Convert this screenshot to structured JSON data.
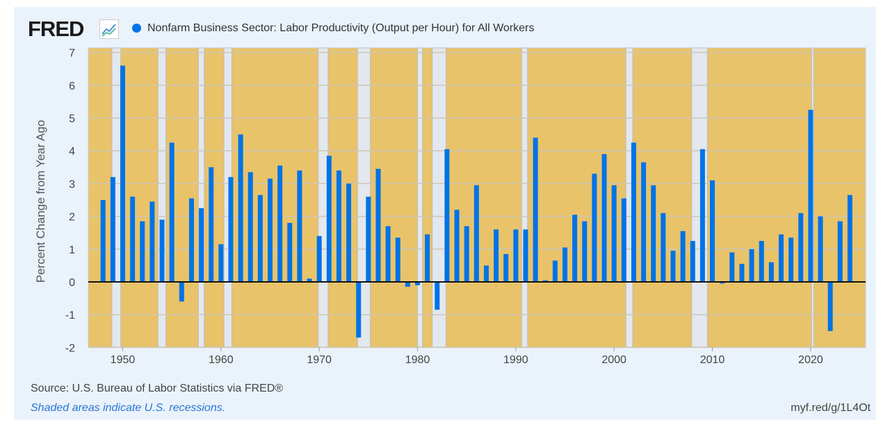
{
  "header": {
    "logo": "FRED",
    "logo_icon": "line-chart-icon",
    "series_title": "Nonfarm Business Sector: Labor Productivity (Output per Hour) for All Workers"
  },
  "footer": {
    "source": "Source: U.S. Bureau of Labor Statistics via FRED®",
    "note": "Shaded areas indicate U.S. recessions.",
    "short_url": "myf.red/g/1L4Ot"
  },
  "colors": {
    "bar": "#0073e6",
    "plot_background": "#e8c36a",
    "recession": "#e3e8ee",
    "page_background": "#eaf2fb"
  },
  "chart_data": {
    "type": "bar",
    "title": "Nonfarm Business Sector: Labor Productivity (Output per Hour) for All Workers",
    "ylabel": "Percent Change from Year Ago",
    "xlabel": "",
    "ylim": [
      -2,
      7
    ],
    "xlim": [
      1946.5,
      2025.6
    ],
    "yticks": [
      -2,
      -1,
      0,
      1,
      2,
      3,
      4,
      5,
      6,
      7
    ],
    "xticks": [
      1950,
      1960,
      1970,
      1980,
      1990,
      2000,
      2010,
      2020
    ],
    "grid": true,
    "recessions": [
      [
        1948.9,
        1949.8
      ],
      [
        1953.6,
        1954.4
      ],
      [
        1957.7,
        1958.3
      ],
      [
        1960.3,
        1961.1
      ],
      [
        1969.9,
        1970.9
      ],
      [
        1973.9,
        1975.2
      ],
      [
        1980.0,
        1980.5
      ],
      [
        1981.5,
        1982.9
      ],
      [
        1990.6,
        1991.2
      ],
      [
        2001.2,
        2001.9
      ],
      [
        2007.9,
        2009.5
      ],
      [
        2020.1,
        2020.3
      ]
    ],
    "x": [
      1948,
      1949,
      1950,
      1951,
      1952,
      1953,
      1954,
      1955,
      1956,
      1957,
      1958,
      1959,
      1960,
      1961,
      1962,
      1963,
      1964,
      1965,
      1966,
      1967,
      1968,
      1969,
      1970,
      1971,
      1972,
      1973,
      1974,
      1975,
      1976,
      1977,
      1978,
      1979,
      1980,
      1981,
      1982,
      1983,
      1984,
      1985,
      1986,
      1987,
      1988,
      1989,
      1990,
      1991,
      1992,
      1993,
      1994,
      1995,
      1996,
      1997,
      1998,
      1999,
      2000,
      2001,
      2002,
      2003,
      2004,
      2005,
      2006,
      2007,
      2008,
      2009,
      2010,
      2011,
      2012,
      2013,
      2014,
      2015,
      2016,
      2017,
      2018,
      2019,
      2020,
      2021,
      2022,
      2023,
      2024
    ],
    "values": [
      2.5,
      3.2,
      6.6,
      2.6,
      1.85,
      2.45,
      1.9,
      4.25,
      -0.6,
      2.55,
      2.25,
      3.5,
      1.15,
      3.2,
      4.5,
      3.35,
      2.65,
      3.15,
      3.55,
      1.8,
      3.4,
      0.1,
      1.4,
      3.85,
      3.4,
      3.0,
      -1.7,
      2.6,
      3.45,
      1.7,
      1.35,
      -0.15,
      -0.1,
      1.45,
      -0.85,
      4.05,
      2.2,
      1.7,
      2.95,
      0.5,
      1.6,
      0.85,
      1.6,
      1.6,
      4.4,
      0.05,
      0.65,
      1.05,
      2.05,
      1.85,
      3.3,
      3.9,
      2.95,
      2.55,
      4.25,
      3.65,
      2.95,
      2.1,
      0.95,
      1.55,
      1.25,
      4.05,
      3.1,
      -0.05,
      0.9,
      0.55,
      1.0,
      1.25,
      0.6,
      1.45,
      1.35,
      2.1,
      5.25,
      2.0,
      -1.5,
      1.85,
      2.65
    ]
  }
}
